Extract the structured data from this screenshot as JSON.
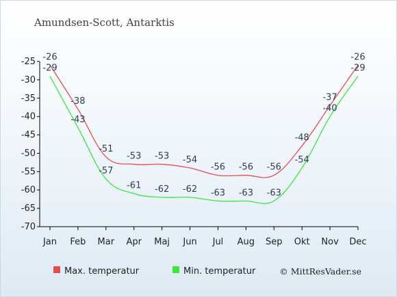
{
  "chart_data": {
    "type": "line",
    "title": "Amundsen-Scott, Antarktis",
    "categories": [
      "Jan",
      "Feb",
      "Mar",
      "Apr",
      "Maj",
      "Jun",
      "Jul",
      "Aug",
      "Sep",
      "Okt",
      "Nov",
      "Dec"
    ],
    "series": [
      {
        "name": "Max. temperatur",
        "color": "#e84c4c",
        "values": [
          -26,
          -38,
          -51,
          -53,
          -53,
          -54,
          -56,
          -56,
          -56,
          -48,
          -37,
          -26
        ]
      },
      {
        "name": "Min. temperatur",
        "color": "#39e83a",
        "values": [
          -29,
          -43,
          -57,
          -61,
          -62,
          -62,
          -63,
          -63,
          -63,
          -54,
          -40,
          -29
        ]
      }
    ],
    "ylim": [
      -70,
      -25
    ],
    "yticks": [
      -25,
      -30,
      -35,
      -40,
      -45,
      -50,
      -55,
      -60,
      -65,
      -70
    ],
    "grid": false,
    "legend": "bottom-left"
  },
  "credit": "© MittResVader.se"
}
